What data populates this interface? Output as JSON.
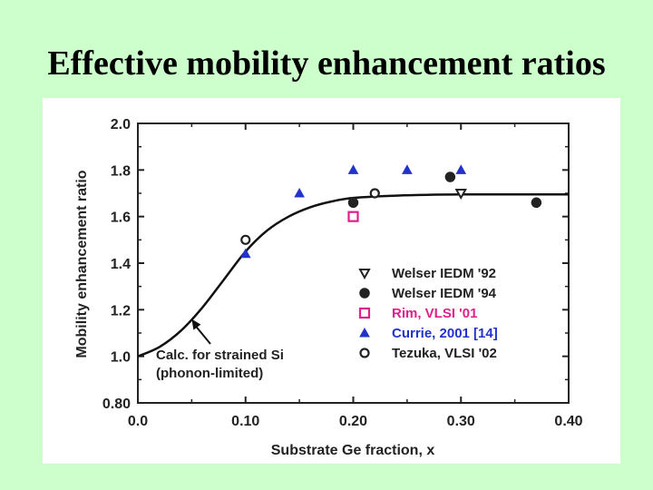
{
  "slide": {
    "title": "Effective mobility enhancement ratios"
  },
  "chart_data": {
    "type": "scatter",
    "title": "",
    "xlabel": "Substrate Ge fraction, x",
    "ylabel": "Mobility enhancement ratio",
    "xlim": [
      0.0,
      0.4
    ],
    "ylim": [
      0.8,
      2.0
    ],
    "xticks": [
      0.0,
      0.1,
      0.2,
      0.3,
      0.4
    ],
    "xtick_labels": [
      "0.0",
      "0.10",
      "0.20",
      "0.30",
      "0.40"
    ],
    "yticks": [
      0.8,
      1.0,
      1.2,
      1.4,
      1.6,
      1.8,
      2.0
    ],
    "ytick_labels": [
      "0.80",
      "1.0",
      "1.2",
      "1.4",
      "1.6",
      "1.8",
      "2.0"
    ],
    "legend_position": "bottom-right",
    "series": [
      {
        "name": "Welser IEDM '92",
        "marker": "triangle-down-open",
        "color": "#222222",
        "points": [
          {
            "x": 0.3,
            "y": 1.7
          }
        ]
      },
      {
        "name": "Welser IEDM '94",
        "marker": "circle-filled",
        "color": "#222222",
        "points": [
          {
            "x": 0.2,
            "y": 1.66
          },
          {
            "x": 0.29,
            "y": 1.77
          },
          {
            "x": 0.37,
            "y": 1.66
          }
        ]
      },
      {
        "name": "Rim, VLSI '01",
        "marker": "square-open",
        "color": "#e0208a",
        "points": [
          {
            "x": 0.2,
            "y": 1.6
          }
        ]
      },
      {
        "name": "Currie, 2001 [14]",
        "marker": "triangle-up-filled",
        "color": "#2233cc",
        "points": [
          {
            "x": 0.1,
            "y": 1.44
          },
          {
            "x": 0.15,
            "y": 1.7
          },
          {
            "x": 0.2,
            "y": 1.8
          },
          {
            "x": 0.25,
            "y": 1.8
          },
          {
            "x": 0.3,
            "y": 1.8
          }
        ]
      },
      {
        "name": "Tezuka, VLSI '02",
        "marker": "circle-open",
        "color": "#222222",
        "points": [
          {
            "x": 0.1,
            "y": 1.5
          },
          {
            "x": 0.22,
            "y": 1.7
          }
        ]
      }
    ],
    "curve": {
      "name": "Calc. for strained Si (phonon-limited)",
      "color": "#111111",
      "points": [
        {
          "x": 0.0,
          "y": 1.0
        },
        {
          "x": 0.02,
          "y": 1.04
        },
        {
          "x": 0.04,
          "y": 1.11
        },
        {
          "x": 0.06,
          "y": 1.21
        },
        {
          "x": 0.08,
          "y": 1.33
        },
        {
          "x": 0.1,
          "y": 1.45
        },
        {
          "x": 0.12,
          "y": 1.54
        },
        {
          "x": 0.14,
          "y": 1.6
        },
        {
          "x": 0.16,
          "y": 1.64
        },
        {
          "x": 0.18,
          "y": 1.665
        },
        {
          "x": 0.2,
          "y": 1.68
        },
        {
          "x": 0.24,
          "y": 1.69
        },
        {
          "x": 0.3,
          "y": 1.695
        },
        {
          "x": 0.4,
          "y": 1.695
        }
      ]
    },
    "annotation": {
      "lines": [
        "Calc. for strained Si",
        "(phonon-limited)"
      ],
      "arrow_target": {
        "x": 0.05,
        "y": 1.16
      }
    }
  }
}
